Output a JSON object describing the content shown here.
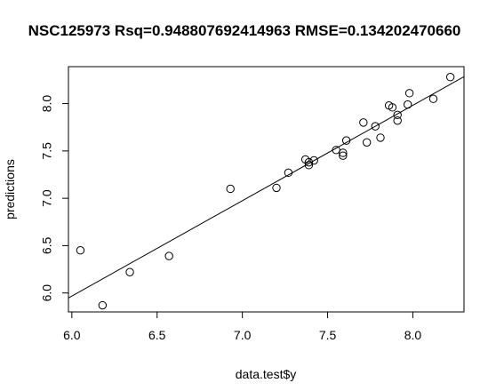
{
  "chart_data": {
    "type": "scatter",
    "title": "NSC125973 Rsq=0.948807692414963 RMSE=0.134202470660",
    "xlabel": "data.test$y",
    "ylabel": "predictions",
    "xlim": [
      5.98,
      8.3
    ],
    "ylim": [
      5.8,
      8.39
    ],
    "x_ticks": [
      "6.0",
      "6.5",
      "7.0",
      "7.5",
      "8.0"
    ],
    "y_ticks": [
      "6.0",
      "6.5",
      "7.0",
      "7.5",
      "8.0"
    ],
    "grid": false,
    "points": [
      {
        "x": 6.05,
        "y": 6.45
      },
      {
        "x": 6.18,
        "y": 5.87
      },
      {
        "x": 6.34,
        "y": 6.22
      },
      {
        "x": 6.57,
        "y": 6.39
      },
      {
        "x": 6.93,
        "y": 7.1
      },
      {
        "x": 7.2,
        "y": 7.11
      },
      {
        "x": 7.27,
        "y": 7.27
      },
      {
        "x": 7.37,
        "y": 7.41
      },
      {
        "x": 7.39,
        "y": 7.35
      },
      {
        "x": 7.39,
        "y": 7.38
      },
      {
        "x": 7.42,
        "y": 7.4
      },
      {
        "x": 7.55,
        "y": 7.51
      },
      {
        "x": 7.59,
        "y": 7.45
      },
      {
        "x": 7.59,
        "y": 7.48
      },
      {
        "x": 7.61,
        "y": 7.61
      },
      {
        "x": 7.71,
        "y": 7.8
      },
      {
        "x": 7.73,
        "y": 7.59
      },
      {
        "x": 7.78,
        "y": 7.76
      },
      {
        "x": 7.81,
        "y": 7.64
      },
      {
        "x": 7.86,
        "y": 7.98
      },
      {
        "x": 7.88,
        "y": 7.96
      },
      {
        "x": 7.91,
        "y": 7.82
      },
      {
        "x": 7.91,
        "y": 7.88
      },
      {
        "x": 7.97,
        "y": 7.99
      },
      {
        "x": 7.98,
        "y": 8.11
      },
      {
        "x": 8.12,
        "y": 8.05
      },
      {
        "x": 8.22,
        "y": 8.28
      }
    ],
    "fit_line": {
      "intercept": -0.078,
      "slope": 1.0075
    }
  }
}
